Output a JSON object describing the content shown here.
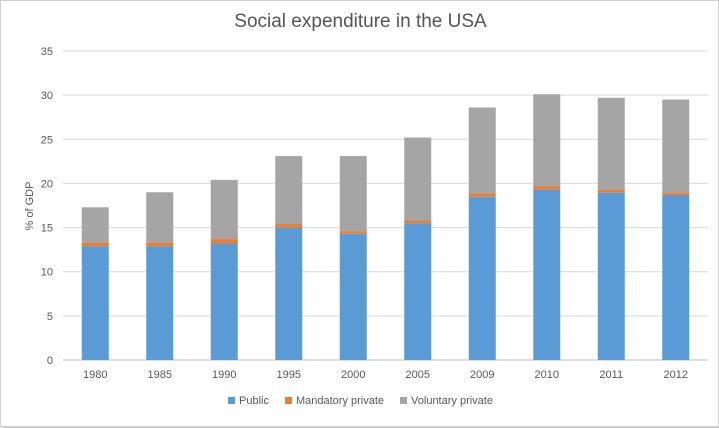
{
  "chart_data": {
    "type": "bar",
    "stacked": true,
    "title": "Social expenditure in the USA",
    "xlabel": "",
    "ylabel": "% of GDP",
    "ylim": [
      0,
      35
    ],
    "yticks": [
      "0",
      "5",
      "10",
      "15",
      "20",
      "25",
      "30",
      "35"
    ],
    "grid": true,
    "legend_position": "bottom",
    "categories": [
      "1980",
      "1985",
      "1990",
      "1995",
      "2000",
      "2005",
      "2009",
      "2010",
      "2011",
      "2012"
    ],
    "series": [
      {
        "name": "Public",
        "color": "#5b9bd5",
        "values": [
          12.9,
          12.9,
          13.2,
          15.0,
          14.3,
          15.5,
          18.5,
          19.3,
          19.0,
          18.7
        ]
      },
      {
        "name": "Mandatory private",
        "color": "#ed7d31",
        "values": [
          0.4,
          0.4,
          0.5,
          0.4,
          0.3,
          0.3,
          0.4,
          0.4,
          0.3,
          0.3
        ]
      },
      {
        "name": "Voluntary private",
        "color": "#a5a5a5",
        "values": [
          4.0,
          5.7,
          6.7,
          7.7,
          8.5,
          9.4,
          9.7,
          10.4,
          10.4,
          10.5
        ]
      }
    ]
  }
}
